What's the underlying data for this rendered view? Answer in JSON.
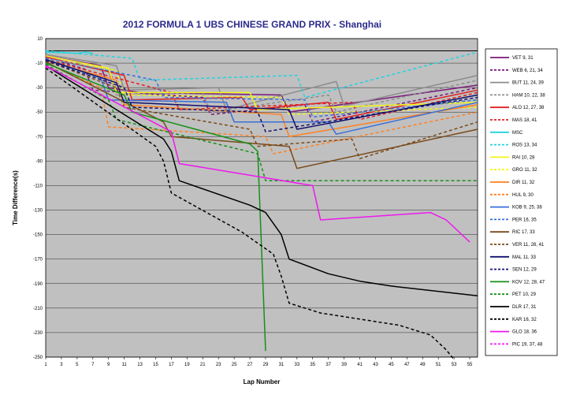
{
  "chart_data": {
    "type": "line",
    "title": "2012 FORMULA 1 UBS CHINESE GRAND PRIX - Shanghai",
    "xlabel": "Lap Number",
    "ylabel": "Time Difference(s)",
    "xlim": [
      1,
      56
    ],
    "ylim": [
      -250,
      10
    ],
    "x_ticks": [
      1,
      3,
      5,
      7,
      9,
      11,
      13,
      15,
      17,
      19,
      21,
      23,
      25,
      27,
      29,
      31,
      33,
      35,
      37,
      39,
      41,
      43,
      45,
      47,
      49,
      51,
      53,
      55
    ],
    "y_ticks": [
      10,
      -10,
      -30,
      -50,
      -70,
      -90,
      -110,
      -130,
      -150,
      -170,
      -190,
      -210,
      -230,
      -250
    ],
    "grid": "horizontal",
    "plot_background": "#c0c0c0",
    "legend_position": "right",
    "series": [
      {
        "name": "VET 9, 31",
        "color": "#7a1a7a",
        "dash": "solid",
        "points": [
          [
            1,
            -4
          ],
          [
            8,
            -12
          ],
          [
            9,
            -30
          ],
          [
            13,
            -34
          ],
          [
            31,
            -36
          ],
          [
            32,
            -50
          ],
          [
            56,
            -28
          ]
        ]
      },
      {
        "name": "WEB 6, 21, 34",
        "color": "#7a1a7a",
        "dash": "dashed",
        "points": [
          [
            1,
            -5
          ],
          [
            6,
            -15
          ],
          [
            7,
            -32
          ],
          [
            21,
            -38
          ],
          [
            22,
            -52
          ],
          [
            34,
            -44
          ],
          [
            35,
            -58
          ],
          [
            56,
            -30
          ]
        ]
      },
      {
        "name": "BUT 11, 24, 39",
        "color": "#8c8c8c",
        "dash": "solid",
        "points": [
          [
            1,
            -3
          ],
          [
            10,
            -12
          ],
          [
            11,
            -32
          ],
          [
            23,
            -30
          ],
          [
            24,
            -48
          ],
          [
            38,
            -25
          ],
          [
            39,
            -45
          ],
          [
            56,
            -20
          ]
        ]
      },
      {
        "name": "HAM 10, 22, 38",
        "color": "#8c8c8c",
        "dash": "dashed",
        "points": [
          [
            1,
            -6
          ],
          [
            9,
            -16
          ],
          [
            10,
            -36
          ],
          [
            21,
            -34
          ],
          [
            22,
            -50
          ],
          [
            37,
            -36
          ],
          [
            38,
            -50
          ],
          [
            56,
            -24
          ]
        ]
      },
      {
        "name": "ALO 12, 27, 38",
        "color": "#e02020",
        "dash": "solid",
        "points": [
          [
            1,
            -5
          ],
          [
            11,
            -20
          ],
          [
            12,
            -40
          ],
          [
            26,
            -38
          ],
          [
            27,
            -48
          ],
          [
            37,
            -42
          ],
          [
            38,
            -56
          ],
          [
            56,
            -32
          ]
        ]
      },
      {
        "name": "MAS 18, 41",
        "color": "#e02020",
        "dash": "dashed",
        "points": [
          [
            1,
            -7
          ],
          [
            17,
            -34
          ],
          [
            18,
            -48
          ],
          [
            40,
            -42
          ],
          [
            41,
            -56
          ],
          [
            56,
            -34
          ]
        ]
      },
      {
        "name": "MSC",
        "color": "#22d3e0",
        "dash": "solid",
        "points": [
          [
            1,
            -1
          ],
          [
            5,
            -2
          ],
          [
            6,
            -1
          ],
          [
            7,
            -2
          ]
        ]
      },
      {
        "name": "ROS 13, 34",
        "color": "#22d3e0",
        "dash": "dashed",
        "points": [
          [
            1,
            0
          ],
          [
            12,
            -6
          ],
          [
            13,
            -24
          ],
          [
            33,
            -20
          ],
          [
            34,
            -38
          ],
          [
            56,
            -1
          ]
        ]
      },
      {
        "name": "RAI 10, 28",
        "color": "#f5f518",
        "dash": "solid",
        "points": [
          [
            1,
            -4
          ],
          [
            9,
            -14
          ],
          [
            10,
            -34
          ],
          [
            27,
            -34
          ],
          [
            28,
            -48
          ],
          [
            56,
            -42
          ]
        ]
      },
      {
        "name": "GRO 11, 32",
        "color": "#f5f518",
        "dash": "dashed",
        "points": [
          [
            1,
            -6
          ],
          [
            10,
            -16
          ],
          [
            11,
            -36
          ],
          [
            31,
            -38
          ],
          [
            32,
            -52
          ],
          [
            56,
            -46
          ]
        ]
      },
      {
        "name": "DIR 11, 32",
        "color": "#ff8020",
        "dash": "solid",
        "points": [
          [
            1,
            -8
          ],
          [
            10,
            -24
          ],
          [
            11,
            -44
          ],
          [
            31,
            -52
          ],
          [
            32,
            -70
          ],
          [
            56,
            -44
          ]
        ]
      },
      {
        "name": "HUL 9, 30",
        "color": "#ff8020",
        "dash": "dashed",
        "points": [
          [
            1,
            -10
          ],
          [
            8,
            -30
          ],
          [
            9,
            -62
          ],
          [
            29,
            -70
          ],
          [
            30,
            -84
          ],
          [
            56,
            -50
          ]
        ]
      },
      {
        "name": "KOB 9, 25, 38",
        "color": "#3a6fd8",
        "dash": "solid",
        "points": [
          [
            1,
            -7
          ],
          [
            8,
            -22
          ],
          [
            9,
            -40
          ],
          [
            24,
            -42
          ],
          [
            25,
            -58
          ],
          [
            37,
            -58
          ],
          [
            38,
            -68
          ],
          [
            56,
            -42
          ]
        ]
      },
      {
        "name": "PER 16, 35",
        "color": "#3a6fd8",
        "dash": "dashed",
        "points": [
          [
            1,
            -6
          ],
          [
            15,
            -24
          ],
          [
            16,
            -38
          ],
          [
            34,
            -40
          ],
          [
            35,
            -54
          ],
          [
            56,
            -40
          ]
        ]
      },
      {
        "name": "RIC 17, 33",
        "color": "#7a4a1a",
        "dash": "solid",
        "points": [
          [
            1,
            -9
          ],
          [
            16,
            -58
          ],
          [
            17,
            -70
          ],
          [
            32,
            -78
          ],
          [
            33,
            -96
          ],
          [
            56,
            -64
          ]
        ]
      },
      {
        "name": "VER 11, 28, 41",
        "color": "#7a4a1a",
        "dash": "dashed",
        "points": [
          [
            1,
            -8
          ],
          [
            10,
            -30
          ],
          [
            11,
            -46
          ],
          [
            27,
            -64
          ],
          [
            28,
            -78
          ],
          [
            40,
            -72
          ],
          [
            41,
            -88
          ],
          [
            56,
            -58
          ]
        ]
      },
      {
        "name": "MAL 11, 33",
        "color": "#101070",
        "dash": "solid",
        "points": [
          [
            1,
            -7
          ],
          [
            10,
            -26
          ],
          [
            11,
            -42
          ],
          [
            32,
            -48
          ],
          [
            33,
            -64
          ],
          [
            56,
            -36
          ]
        ]
      },
      {
        "name": "SEN 12, 29",
        "color": "#101070",
        "dash": "dashed",
        "points": [
          [
            1,
            -8
          ],
          [
            11,
            -30
          ],
          [
            12,
            -46
          ],
          [
            28,
            -50
          ],
          [
            29,
            -66
          ],
          [
            56,
            -38
          ]
        ]
      },
      {
        "name": "KOV 12, 28, 47",
        "color": "#16901a",
        "dash": "solid",
        "points": [
          [
            1,
            -10
          ],
          [
            11,
            -36
          ],
          [
            12,
            -50
          ],
          [
            27,
            -76
          ],
          [
            28,
            -82
          ],
          [
            29,
            -245
          ]
        ]
      },
      {
        "name": "PET 10, 29",
        "color": "#16901a",
        "dash": "dashed",
        "points": [
          [
            1,
            -11
          ],
          [
            9,
            -40
          ],
          [
            10,
            -56
          ],
          [
            28,
            -84
          ],
          [
            29,
            -106
          ],
          [
            56,
            -106
          ]
        ]
      },
      {
        "name": "DLR 17, 31",
        "color": "#000000",
        "dash": "solid",
        "points": [
          [
            1,
            -12
          ],
          [
            16,
            -72
          ],
          [
            17,
            -82
          ],
          [
            18,
            -106
          ],
          [
            27,
            -126
          ],
          [
            29,
            -132
          ],
          [
            31,
            -150
          ],
          [
            32,
            -170
          ],
          [
            37,
            -182
          ],
          [
            41,
            -188
          ],
          [
            45,
            -192
          ],
          [
            56,
            -200
          ]
        ]
      },
      {
        "name": "KAR 16, 32",
        "color": "#000000",
        "dash": "dashed",
        "points": [
          [
            1,
            -14
          ],
          [
            15,
            -78
          ],
          [
            16,
            -90
          ],
          [
            17,
            -116
          ],
          [
            26,
            -148
          ],
          [
            30,
            -166
          ],
          [
            31,
            -184
          ],
          [
            32,
            -206
          ],
          [
            36,
            -214
          ],
          [
            46,
            -224
          ],
          [
            50,
            -232
          ],
          [
            52,
            -244
          ],
          [
            53,
            -252
          ]
        ]
      },
      {
        "name": "GLO 18, 36",
        "color": "#ee18ee",
        "dash": "solid",
        "points": [
          [
            1,
            -12
          ],
          [
            17,
            -66
          ],
          [
            18,
            -92
          ],
          [
            35,
            -110
          ],
          [
            36,
            -138
          ],
          [
            50,
            -132
          ],
          [
            52,
            -138
          ],
          [
            55,
            -156
          ]
        ]
      },
      {
        "name": "PIC 19, 37, 48",
        "color": "#ee18ee",
        "dash": "dashed",
        "points": [
          [
            1,
            -13
          ],
          [
            2,
            -16
          ]
        ]
      }
    ]
  }
}
